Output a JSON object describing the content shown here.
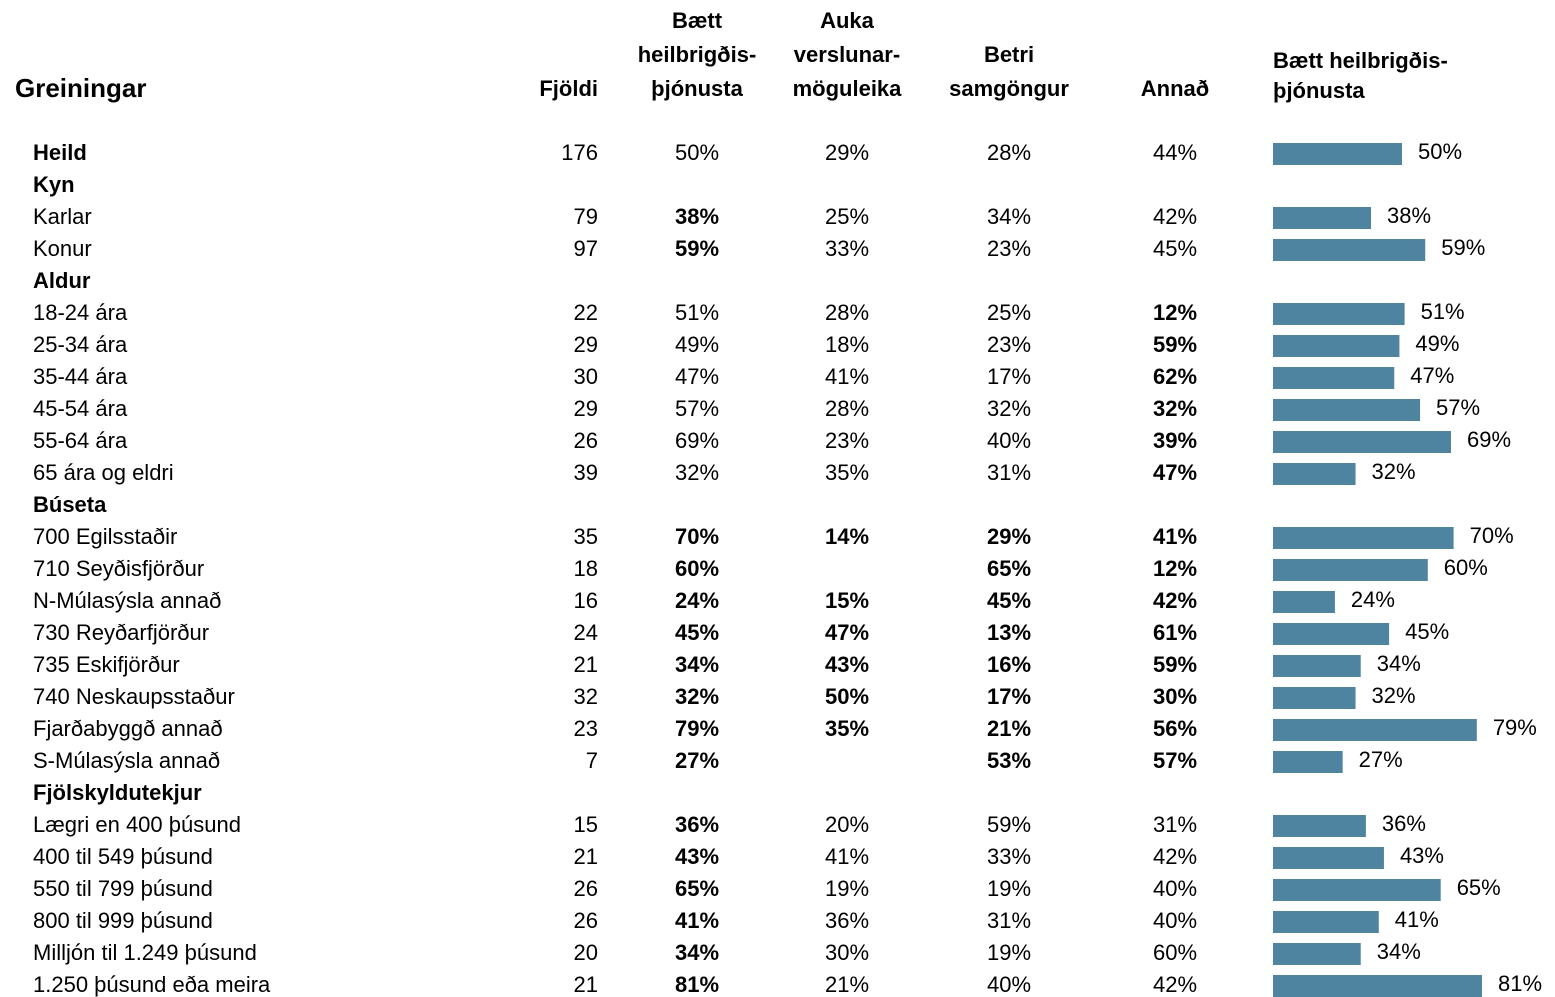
{
  "table": {
    "title": "Greiningar",
    "columns": [
      [
        "Fjöldi"
      ],
      [
        "Bætt",
        "heilbrigðis-",
        "þjónusta"
      ],
      [
        "Auka",
        "verslunar-",
        "möguleika"
      ],
      [
        "Betri",
        "samgöngur"
      ],
      [
        "Annað"
      ]
    ],
    "bar_header": [
      "Bætt heilbrigðis-",
      "þjónusta"
    ],
    "bar_column": 0,
    "bar_xlim": [
      0,
      100
    ],
    "bar_color": "#4e84a0",
    "highlight_color": "#5b8ba5",
    "rows": [
      {
        "label": "Heild",
        "bold": true,
        "n": 176,
        "values": [
          50,
          29,
          28,
          44
        ],
        "value_labels": [
          "50%",
          "29%",
          "28%",
          "44%"
        ],
        "highlight": [
          false,
          false,
          false,
          false
        ]
      },
      {
        "label": "Kyn",
        "group": true
      },
      {
        "label": "Karlar",
        "n": 79,
        "values": [
          38,
          25,
          34,
          42
        ],
        "value_labels": [
          "38%",
          "25%",
          "34%",
          "42%"
        ],
        "highlight": [
          true,
          false,
          false,
          false
        ]
      },
      {
        "label": "Konur",
        "n": 97,
        "values": [
          59,
          33,
          23,
          45
        ],
        "value_labels": [
          "59%",
          "33%",
          "23%",
          "45%"
        ],
        "highlight": [
          true,
          false,
          false,
          false
        ]
      },
      {
        "label": "Aldur",
        "group": true
      },
      {
        "label": "18-24 ára",
        "n": 22,
        "values": [
          51,
          28,
          25,
          12
        ],
        "value_labels": [
          "51%",
          "28%",
          "25%",
          "12%"
        ],
        "highlight": [
          false,
          false,
          false,
          true
        ]
      },
      {
        "label": "25-34 ára",
        "n": 29,
        "values": [
          49,
          18,
          23,
          59
        ],
        "value_labels": [
          "49%",
          "18%",
          "23%",
          "59%"
        ],
        "highlight": [
          false,
          false,
          false,
          true
        ]
      },
      {
        "label": "35-44 ára",
        "n": 30,
        "values": [
          47,
          41,
          17,
          62
        ],
        "value_labels": [
          "47%",
          "41%",
          "17%",
          "62%"
        ],
        "highlight": [
          false,
          false,
          false,
          true
        ]
      },
      {
        "label": "45-54 ára",
        "n": 29,
        "values": [
          57,
          28,
          32,
          32
        ],
        "value_labels": [
          "57%",
          "28%",
          "32%",
          "32%"
        ],
        "highlight": [
          false,
          false,
          false,
          true
        ]
      },
      {
        "label": "55-64 ára",
        "n": 26,
        "values": [
          69,
          23,
          40,
          39
        ],
        "value_labels": [
          "69%",
          "23%",
          "40%",
          "39%"
        ],
        "highlight": [
          false,
          false,
          false,
          true
        ]
      },
      {
        "label": "65 ára og eldri",
        "n": 39,
        "values": [
          32,
          35,
          31,
          47
        ],
        "value_labels": [
          "32%",
          "35%",
          "31%",
          "47%"
        ],
        "highlight": [
          false,
          false,
          false,
          true
        ]
      },
      {
        "label": "Búseta",
        "group": true
      },
      {
        "label": "700 Egilsstaðir",
        "n": 35,
        "values": [
          70,
          14,
          29,
          41
        ],
        "value_labels": [
          "70%",
          "14%",
          "29%",
          "41%"
        ],
        "highlight": [
          true,
          true,
          true,
          true
        ]
      },
      {
        "label": "710 Seyðisfjörður",
        "n": 18,
        "values": [
          60,
          null,
          65,
          12
        ],
        "value_labels": [
          "60%",
          null,
          "65%",
          "12%"
        ],
        "highlight": [
          true,
          false,
          true,
          true
        ]
      },
      {
        "label": "N-Múlasýsla annað",
        "n": 16,
        "values": [
          24,
          15,
          45,
          42
        ],
        "value_labels": [
          "24%",
          "15%",
          "45%",
          "42%"
        ],
        "highlight": [
          true,
          true,
          true,
          true
        ]
      },
      {
        "label": "730 Reyðarfjörður",
        "n": 24,
        "values": [
          45,
          47,
          13,
          61
        ],
        "value_labels": [
          "45%",
          "47%",
          "13%",
          "61%"
        ],
        "highlight": [
          true,
          true,
          true,
          true
        ]
      },
      {
        "label": "735 Eskifjörður",
        "n": 21,
        "values": [
          34,
          43,
          16,
          59
        ],
        "value_labels": [
          "34%",
          "43%",
          "16%",
          "59%"
        ],
        "highlight": [
          true,
          true,
          true,
          true
        ]
      },
      {
        "label": "740 Neskaupsstaður",
        "n": 32,
        "values": [
          32,
          50,
          17,
          30
        ],
        "value_labels": [
          "32%",
          "50%",
          "17%",
          "30%"
        ],
        "highlight": [
          true,
          true,
          true,
          true
        ]
      },
      {
        "label": "Fjarðabyggð annað",
        "n": 23,
        "values": [
          79,
          35,
          21,
          56
        ],
        "value_labels": [
          "79%",
          "35%",
          "21%",
          "56%"
        ],
        "highlight": [
          true,
          true,
          true,
          true
        ]
      },
      {
        "label": "S-Múlasýsla annað",
        "n": 7,
        "values": [
          27,
          null,
          53,
          57
        ],
        "value_labels": [
          "27%",
          null,
          "53%",
          "57%"
        ],
        "highlight": [
          true,
          false,
          true,
          true
        ]
      },
      {
        "label": "Fjölskyldutekjur",
        "group": true
      },
      {
        "label": "Lægri en 400 þúsund",
        "n": 15,
        "values": [
          36,
          20,
          59,
          31
        ],
        "value_labels": [
          "36%",
          "20%",
          "59%",
          "31%"
        ],
        "highlight": [
          true,
          false,
          false,
          false
        ]
      },
      {
        "label": "400 til 549 þúsund",
        "n": 21,
        "values": [
          43,
          41,
          33,
          42
        ],
        "value_labels": [
          "43%",
          "41%",
          "33%",
          "42%"
        ],
        "highlight": [
          true,
          false,
          false,
          false
        ]
      },
      {
        "label": "550 til 799 þúsund",
        "n": 26,
        "values": [
          65,
          19,
          19,
          40
        ],
        "value_labels": [
          "65%",
          "19%",
          "19%",
          "40%"
        ],
        "highlight": [
          true,
          false,
          false,
          false
        ]
      },
      {
        "label": "800 til 999 þúsund",
        "n": 26,
        "values": [
          41,
          36,
          31,
          40
        ],
        "value_labels": [
          "41%",
          "36%",
          "31%",
          "40%"
        ],
        "highlight": [
          true,
          false,
          false,
          false
        ]
      },
      {
        "label": "Milljón til 1.249 þúsund",
        "n": 20,
        "values": [
          34,
          30,
          19,
          60
        ],
        "value_labels": [
          "34%",
          "30%",
          "19%",
          "60%"
        ],
        "highlight": [
          true,
          false,
          false,
          false
        ]
      },
      {
        "label": "1.250 þúsund eða meira",
        "n": 21,
        "values": [
          81,
          21,
          40,
          42
        ],
        "value_labels": [
          "81%",
          "21%",
          "40%",
          "42%"
        ],
        "highlight": [
          true,
          false,
          false,
          false
        ]
      }
    ]
  }
}
